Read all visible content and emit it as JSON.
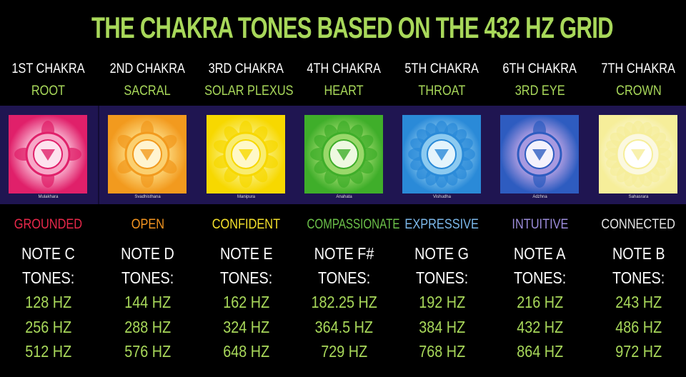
{
  "title": "THE CHAKRA TONES BASED ON THE 432 HZ GRID",
  "chakras": [
    {
      "number": "1ST CHAKRA",
      "name": "ROOT",
      "sanskrit": "Mulakhara",
      "adjective": "GROUNDED",
      "adjective_color": "#e8284a",
      "note": "NOTE C",
      "tones_label": "TONES:",
      "tones": [
        "128 HZ",
        "256 HZ",
        "512 HZ"
      ],
      "colors": [
        "#e0206a",
        "#f7a8c8",
        "#fde2ee"
      ]
    },
    {
      "number": "2ND CHAKRA",
      "name": "SACRAL",
      "sanskrit": "Svadhisthana",
      "adjective": "OPEN",
      "adjective_color": "#f39420",
      "note": "NOTE D",
      "tones_label": "TONES:",
      "tones": [
        "144 HZ",
        "288 HZ",
        "576 HZ"
      ],
      "colors": [
        "#f29a1e",
        "#fbd070",
        "#fff4d0"
      ]
    },
    {
      "number": "3RD CHAKRA",
      "name": "SOLAR PLEXUS",
      "sanskrit": "Manipura",
      "adjective": "CONFIDENT",
      "adjective_color": "#f5e12c",
      "note": "NOTE E",
      "tones_label": "TONES:",
      "tones": [
        "162 HZ",
        "324 HZ",
        "648 HZ"
      ],
      "colors": [
        "#f7d800",
        "#f9ec70",
        "#fff8c8"
      ]
    },
    {
      "number": "4TH CHAKRA",
      "name": "HEART",
      "sanskrit": "Anahata",
      "adjective": "COMPASSIONATE",
      "adjective_color": "#6cc24a",
      "note": "NOTE F#",
      "tones_label": "TONES:",
      "tones": [
        "182.25 HZ",
        "364.5 HZ",
        "729 HZ"
      ],
      "colors": [
        "#3fae2a",
        "#9ad86a",
        "#eef9e0"
      ]
    },
    {
      "number": "5TH CHAKRA",
      "name": "THROAT",
      "sanskrit": "Vishudha",
      "adjective": "EXPRESSIVE",
      "adjective_color": "#7cb8ea",
      "note": "NOTE G",
      "tones_label": "TONES:",
      "tones": [
        "192 HZ",
        "384 HZ",
        "768 HZ"
      ],
      "colors": [
        "#2a8ad8",
        "#8ccaf0",
        "#e4f4fc"
      ]
    },
    {
      "number": "6TH CHAKRA",
      "name": "3RD EYE",
      "sanskrit": "Adzhna",
      "adjective": "INTUITIVE",
      "adjective_color": "#9c8cda",
      "note": "NOTE A",
      "tones_label": "TONES:",
      "tones": [
        "216 HZ",
        "432 HZ",
        "864 HZ"
      ],
      "colors": [
        "#2e5cc0",
        "#a89ae0",
        "#f4f2fc"
      ]
    },
    {
      "number": "7TH CHAKRA",
      "name": "CROWN",
      "sanskrit": "Sahasrara",
      "adjective": "CONNECTED",
      "adjective_color": "#e4e4e4",
      "note": "NOTE B",
      "tones_label": "TONES:",
      "tones": [
        "243 HZ",
        "486 HZ",
        "972 HZ"
      ],
      "colors": [
        "#f6ee9a",
        "#fbf8e0",
        "#ffffff"
      ]
    }
  ],
  "colors": {
    "title": "#a8d85a",
    "band": "#1f1551",
    "hz": "#a8d85a"
  }
}
